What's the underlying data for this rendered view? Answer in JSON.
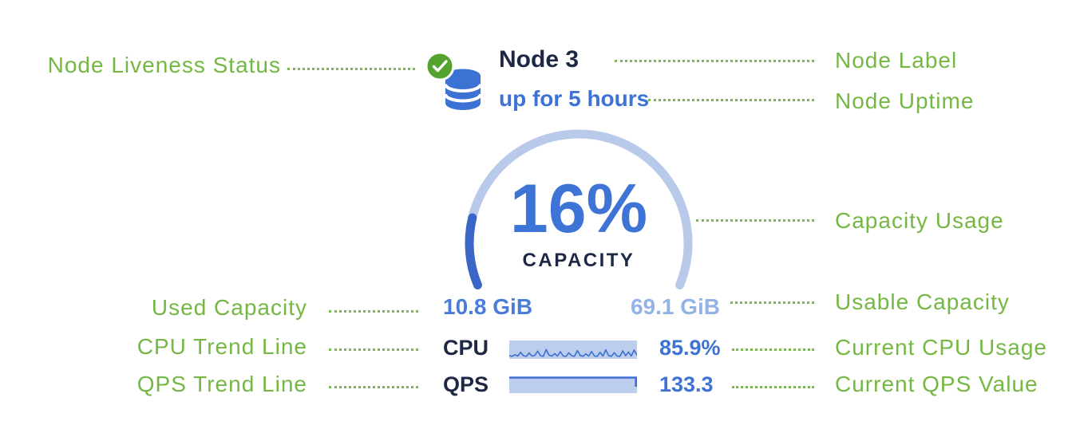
{
  "node": {
    "label": "Node 3",
    "uptime": "up for 5 hours",
    "gauge": {
      "percent": 16,
      "percent_label": "16%",
      "caption": "CAPACITY",
      "used": "10.8 GiB",
      "usable": "69.1 GiB",
      "arc_degrees": 225
    },
    "cpu": {
      "label": "CPU",
      "value": "85.9%",
      "trend": [
        0.15,
        0.1,
        0.22,
        0.12,
        0.4,
        0.14,
        0.1,
        0.34,
        0.12,
        0.16,
        0.48,
        0.14,
        0.1,
        0.6,
        0.18,
        0.12,
        0.3,
        0.12,
        0.44,
        0.12,
        0.1,
        0.36,
        0.14,
        0.1,
        0.52,
        0.16,
        0.1,
        0.28,
        0.12,
        0.46,
        0.12,
        0.1,
        0.4,
        0.12,
        0.58,
        0.16,
        0.1,
        0.36,
        0.12,
        0.1,
        0.5,
        0.14,
        0.42,
        0.12,
        0.56,
        0.18
      ],
      "trend_icon": "cpu-sparkline"
    },
    "qps": {
      "label": "QPS",
      "value": "133.3",
      "trend": [
        1,
        1,
        1,
        1,
        1,
        1,
        1,
        1,
        1,
        1,
        1,
        1,
        1,
        1,
        1,
        1
      ],
      "trend_icon": "qps-sparkline"
    }
  },
  "callouts": {
    "liveness": "Node Liveness Status",
    "node_label": "Node Label",
    "uptime": "Node Uptime",
    "capacity_usage": "Capacity Usage",
    "used": "Used Capacity",
    "usable": "Usable Capacity",
    "cpu_trend": "CPU Trend Line",
    "cpu_usage": "Current CPU Usage",
    "qps_trend": "QPS Trend Line",
    "qps_value": "Current QPS Value"
  },
  "icons": {
    "liveness": "check-circle-icon",
    "node": "database-icon"
  },
  "colors": {
    "annotation_green": "#74b843",
    "leader_green": "#7db654",
    "icon_green": "#54a32e",
    "navy": "#1e2845",
    "value_blue": "#3e72d4",
    "used_blue": "#4a7cd9",
    "usable_blue": "#93b2e6",
    "gauge_track": "#b9c9ea",
    "gauge_fill": "#3a66c8",
    "spark_bg": "#bccded",
    "spark_line": "#3b6fd3"
  }
}
